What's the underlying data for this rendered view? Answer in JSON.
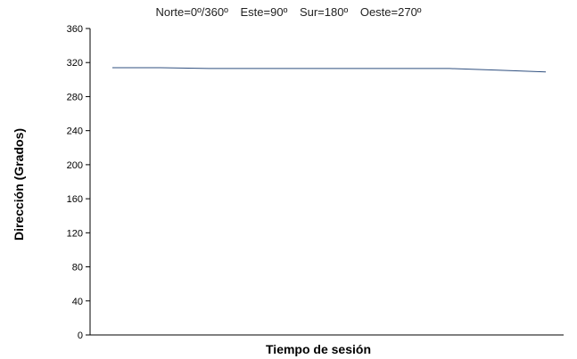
{
  "chart_data": {
    "type": "line",
    "title": "",
    "subtitle_items": [
      "Norte=0º/360º",
      "Este=90º",
      "Sur=180º",
      "Oeste=270º"
    ],
    "xlabel": "Tiempo de sesión",
    "ylabel": "Dirección (Grados)",
    "ylim": [
      0,
      360
    ],
    "yticks": [
      0,
      40,
      80,
      120,
      160,
      200,
      240,
      280,
      320,
      360
    ],
    "grid": false,
    "legend": "none",
    "series": [
      {
        "color": "#2f4f7f",
        "x": [
          1,
          2,
          3,
          4,
          5,
          6,
          7,
          8,
          9,
          10
        ],
        "values": [
          314,
          314,
          313,
          313,
          313,
          313,
          313,
          313,
          311,
          309
        ]
      }
    ]
  }
}
